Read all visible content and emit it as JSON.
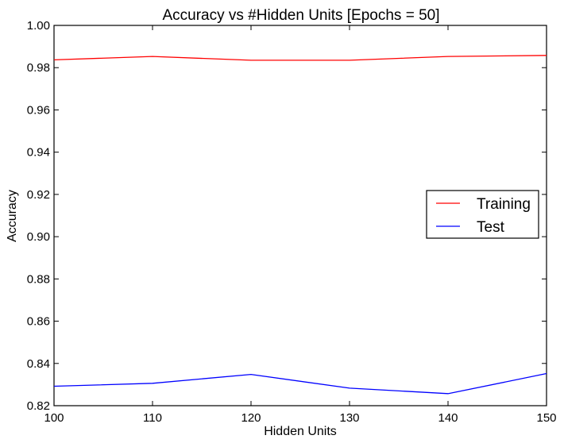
{
  "chart_data": {
    "type": "line",
    "title": "Accuracy vs #Hidden Units [Epochs = 50]",
    "xlabel": "Hidden Units",
    "ylabel": "Accuracy",
    "x": [
      100,
      110,
      120,
      130,
      140,
      150
    ],
    "xlim": [
      100,
      150
    ],
    "ylim": [
      0.82,
      1.0
    ],
    "xticks": [
      100,
      110,
      120,
      130,
      140,
      150
    ],
    "yticks": [
      0.82,
      0.84,
      0.86,
      0.88,
      0.9,
      0.92,
      0.94,
      0.96,
      0.98,
      1.0
    ],
    "xtick_labels": [
      "100",
      "110",
      "120",
      "130",
      "140",
      "150"
    ],
    "ytick_labels": [
      "0.82",
      "0.84",
      "0.86",
      "0.88",
      "0.90",
      "0.92",
      "0.94",
      "0.96",
      "0.98",
      "1.00"
    ],
    "grid": false,
    "legend_position": "center-right",
    "series": [
      {
        "name": "Training",
        "color": "#ff0000",
        "values": [
          0.9837,
          0.9853,
          0.9835,
          0.9835,
          0.9853,
          0.9858
        ]
      },
      {
        "name": "Test",
        "color": "#0000ff",
        "values": [
          0.8292,
          0.8306,
          0.8348,
          0.8283,
          0.8257,
          0.8352
        ]
      }
    ]
  }
}
